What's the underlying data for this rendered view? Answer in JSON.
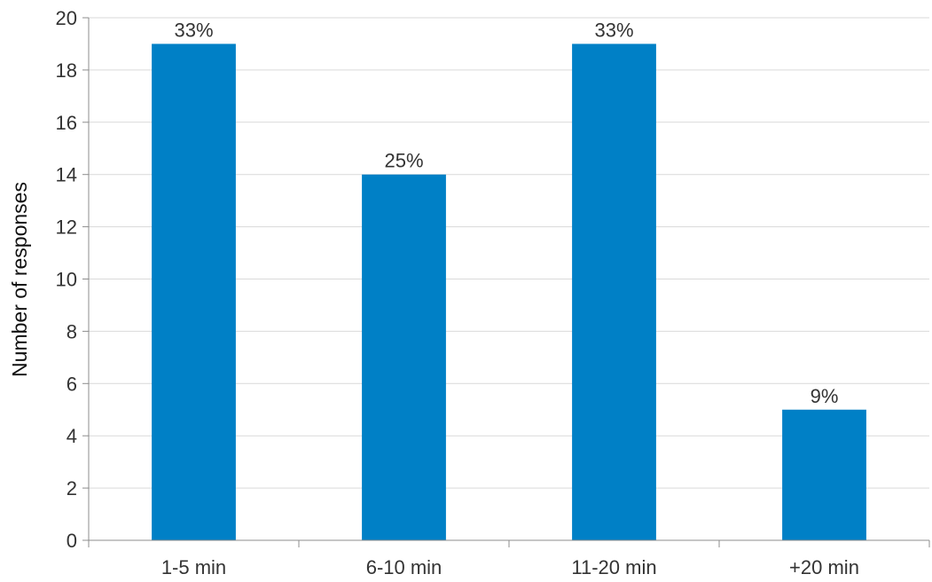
{
  "chart_data": {
    "type": "bar",
    "title": "",
    "xlabel": "",
    "ylabel": "Number of responses",
    "categories": [
      "1-5 min",
      "6-10 min",
      "11-20 min",
      "+20 min"
    ],
    "values": [
      19,
      14,
      19,
      5
    ],
    "data_labels": [
      "33%",
      "25%",
      "33%",
      "9%"
    ],
    "ylim": [
      0,
      20
    ],
    "yticks": [
      0,
      2,
      4,
      6,
      8,
      10,
      12,
      14,
      16,
      18,
      20
    ],
    "ytick_labels": [
      "0",
      "2",
      "4",
      "6",
      "8",
      "10",
      "12",
      "14",
      "16",
      "18",
      "20"
    ],
    "grid": true,
    "legend": "none",
    "bar_color": "#0080c6"
  }
}
